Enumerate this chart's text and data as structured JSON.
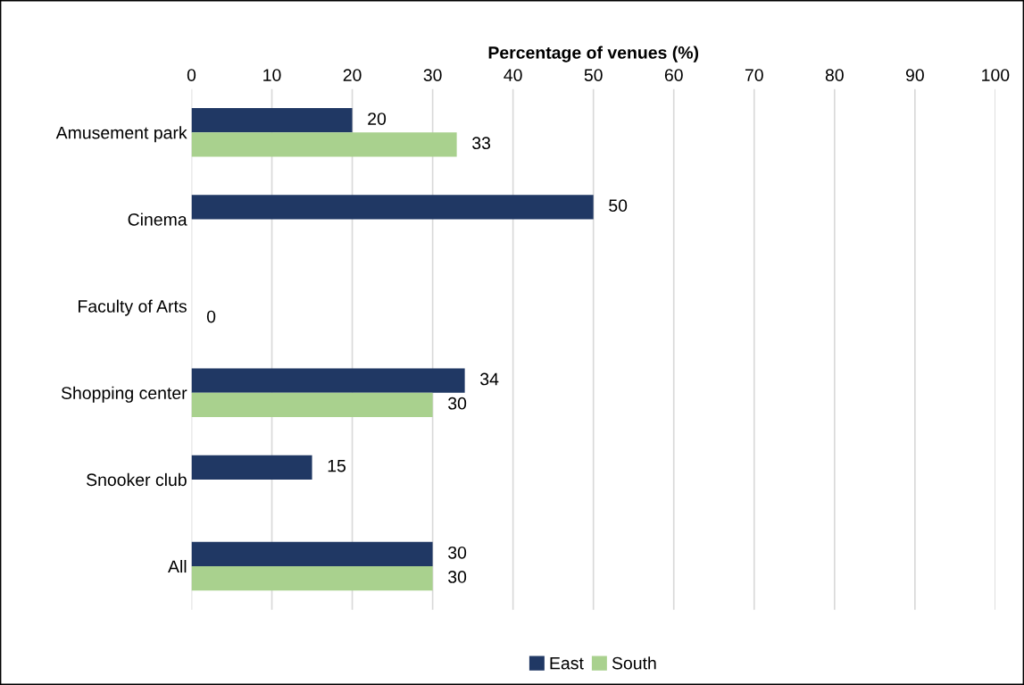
{
  "chart_data": {
    "type": "bar",
    "orientation": "horizontal",
    "xlabel": "Percentage of venues (%)",
    "categories": [
      "Amusement park",
      "Cinema",
      "Faculty of Arts",
      "Shopping center",
      "Snooker club",
      "All"
    ],
    "series": [
      {
        "name": "East",
        "color": "#203864",
        "values": [
          20,
          50,
          null,
          34,
          15,
          30
        ]
      },
      {
        "name": "South",
        "color": "#a9d18e",
        "values": [
          33,
          null,
          0,
          30,
          null,
          30
        ]
      }
    ],
    "xlim": [
      0,
      100
    ],
    "xticks": [
      0,
      10,
      20,
      30,
      40,
      50,
      60,
      70,
      80,
      90,
      100
    ],
    "grid": "x",
    "legend": "bottom",
    "data_labels": true
  }
}
